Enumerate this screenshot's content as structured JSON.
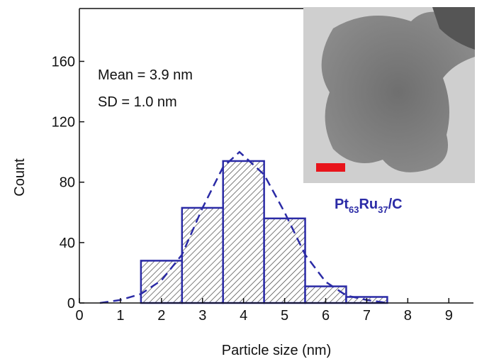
{
  "chart_data": {
    "type": "histogram",
    "xlabel": "Particle size (nm)",
    "ylabel": "Count",
    "bins": [
      1.5,
      2.5,
      3.5,
      4.5,
      5.5,
      6.5,
      7.5
    ],
    "counts": [
      28,
      63,
      94,
      56,
      11,
      4
    ],
    "color": "#2b2ba6",
    "fit": {
      "x": [
        0.5,
        1,
        1.5,
        2,
        2.5,
        3,
        3.5,
        3.9,
        4.5,
        5,
        5.5,
        6,
        6.5,
        7,
        7.5
      ],
      "values": [
        0,
        2,
        6,
        15,
        32,
        63,
        90,
        100,
        85,
        60,
        32,
        14,
        5,
        2,
        0
      ],
      "color": "#2b2ba6"
    },
    "xlim": [
      0,
      9.6
    ],
    "xticks": [
      0,
      1,
      2,
      3,
      4,
      5,
      6,
      7,
      8,
      9
    ],
    "ylim": [
      0,
      195
    ],
    "yticks": [
      0,
      40,
      80,
      120,
      160
    ],
    "annotations": [
      "Mean = 3.9 nm",
      "SD = 1.0 nm"
    ],
    "sample_label": [
      "Pt",
      "63",
      "Ru",
      "37",
      "/C"
    ]
  }
}
